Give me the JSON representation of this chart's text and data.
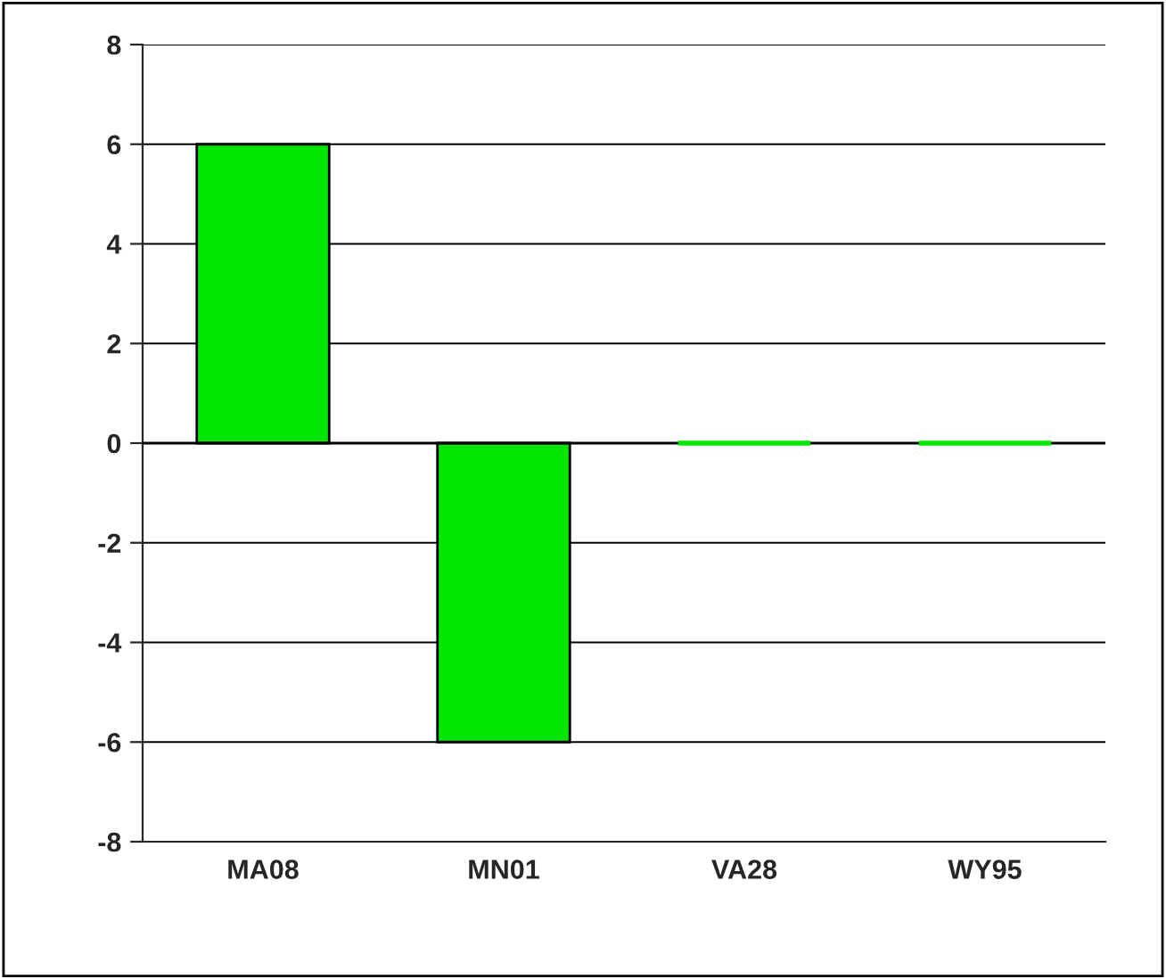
{
  "chart_data": {
    "type": "bar",
    "categories": [
      "MA08",
      "MN01",
      "VA28",
      "WY95"
    ],
    "values": [
      6,
      -6,
      0,
      0
    ],
    "color": "#00e600",
    "ylim": [
      -8,
      8
    ],
    "yticks": [
      -8,
      -6,
      -4,
      -2,
      0,
      2,
      4,
      6,
      8
    ],
    "grid": "y",
    "legend": false
  }
}
